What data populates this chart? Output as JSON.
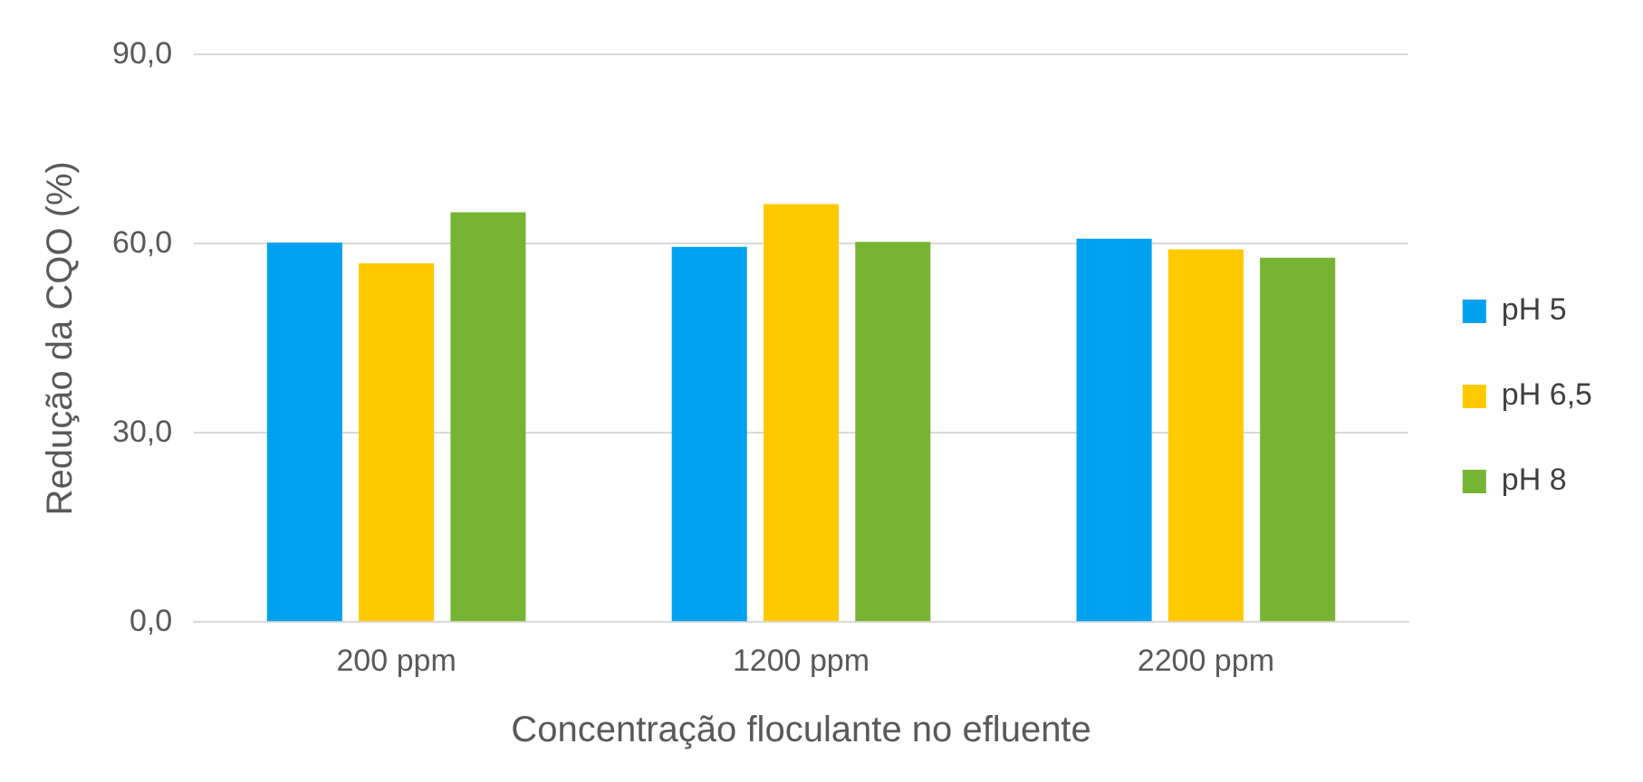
{
  "chart_data": {
    "type": "bar",
    "xlabel": "Concentração floculante no efluente",
    "ylabel": "Redução da CQO (%)",
    "categories": [
      "200 ppm",
      "1200 ppm",
      "2200 ppm"
    ],
    "series": [
      {
        "name": "pH 5",
        "color": "#00a2f0",
        "values": [
          60.2,
          59.5,
          60.8
        ]
      },
      {
        "name": "pH 6,5",
        "color": "#ffc900",
        "values": [
          56.9,
          66.3,
          59.1
        ]
      },
      {
        "name": "pH 8",
        "color": "#77b433",
        "values": [
          65.0,
          60.3,
          57.8
        ]
      }
    ],
    "ylim": [
      0,
      90
    ],
    "yticks": [
      {
        "value": 0,
        "label": "0,0"
      },
      {
        "value": 30,
        "label": "30,0"
      },
      {
        "value": 60,
        "label": "60,0"
      },
      {
        "value": 90,
        "label": "90,0"
      }
    ],
    "grid": "y",
    "legend": "right"
  }
}
